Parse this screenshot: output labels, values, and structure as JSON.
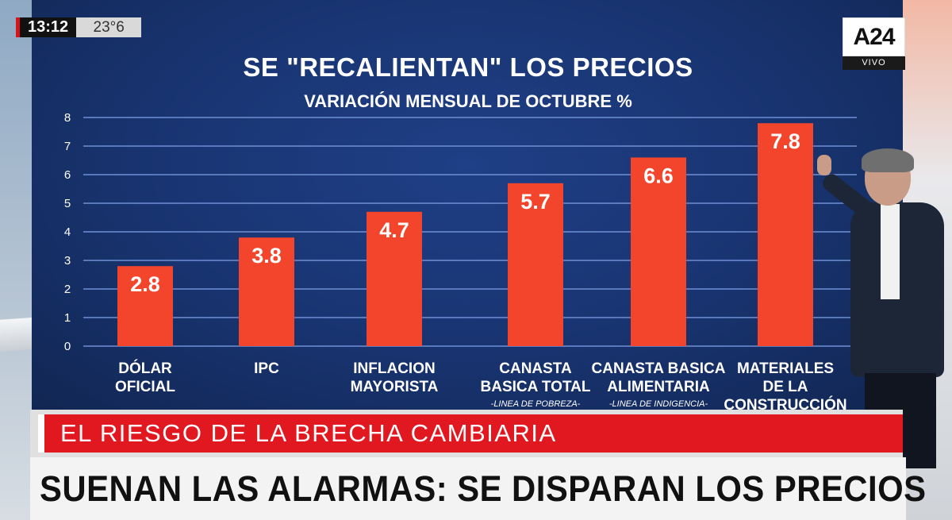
{
  "clock": {
    "time": "13:12",
    "temperature": "23°6"
  },
  "channel": {
    "logo": "A24",
    "live_label": "VIVO"
  },
  "lower_third": {
    "section": "EL RIESGO DE LA BRECHA CAMBIARIA",
    "headline": "SUENAN LAS ALARMAS: SE DISPARAN LOS PRECIOS"
  },
  "colors": {
    "bar": "#f2452c",
    "screen": "#1a3778",
    "gridline": "#6f8fd4",
    "accent_red": "#e21820"
  },
  "chart_data": {
    "type": "bar",
    "title": "SE \"RECALIENTAN\" LOS PRECIOS",
    "subtitle": "VARIACIÓN MENSUAL DE OCTUBRE %",
    "ylim": [
      0,
      8
    ],
    "yticks": [
      0,
      1,
      2,
      3,
      4,
      5,
      6,
      7,
      8
    ],
    "grid": true,
    "categories": [
      {
        "lines": [
          "DÓLAR",
          "OFICIAL"
        ],
        "note": ""
      },
      {
        "lines": [
          "IPC"
        ],
        "note": ""
      },
      {
        "lines": [
          "INFLACION",
          "MAYORISTA"
        ],
        "note": ""
      },
      {
        "lines": [
          "CANASTA",
          "BASICA TOTAL"
        ],
        "note": "-LINEA DE POBREZA-"
      },
      {
        "lines": [
          "CANASTA BASICA",
          "ALIMENTARIA"
        ],
        "note": "-LINEA DE INDIGENCIA-"
      },
      {
        "lines": [
          "MATERIALES",
          "DE LA",
          "CONSTRUCCIÓN"
        ],
        "note": ""
      }
    ],
    "values": [
      2.8,
      3.8,
      4.7,
      5.7,
      6.6,
      7.8
    ],
    "value_labels": [
      "2.8",
      "3.8",
      "4.7",
      "5.7",
      "6.6",
      "7.8"
    ]
  }
}
